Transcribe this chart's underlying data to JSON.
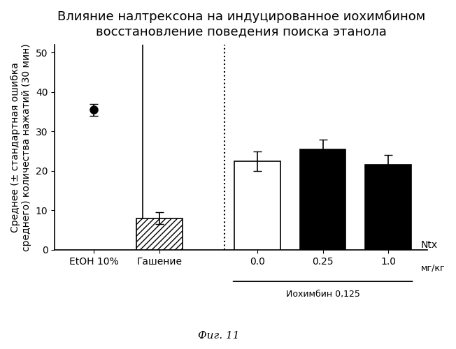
{
  "title_line1": "Влияние налтрексона на индуцированное иохимбином",
  "title_line2": "восстановление поведения поиска этанола",
  "ylabel": "Среднее (± стандартная ошибка\nсреднего) количества нажатий (30 мин)",
  "categories": [
    "EtOH 10%",
    "Гашение",
    "0.0",
    "0.25",
    "1.0"
  ],
  "bar_values": [
    35.5,
    8.0,
    22.5,
    25.5,
    21.5
  ],
  "bar_errors": [
    1.5,
    1.5,
    2.5,
    2.5,
    2.5
  ],
  "dot_value": 35.5,
  "dot_error": 1.5,
  "bar_colors": [
    "white",
    "white",
    "white",
    "black",
    "black"
  ],
  "bar_hatches": [
    null,
    "////",
    null,
    null,
    null
  ],
  "bar_edgecolors": [
    "black",
    "black",
    "black",
    "black",
    "black"
  ],
  "ylim": [
    0,
    52
  ],
  "yticks": [
    0,
    10,
    20,
    30,
    40,
    50
  ],
  "x_positions": [
    0,
    1,
    2.5,
    3.5,
    4.5
  ],
  "solid_vline_x": 0.75,
  "dotted_vline_x": 2.0,
  "ntx_label": "Ntx",
  "mg_label": "мг/кг",
  "yohimbine_label": "Иохимбин 0,125",
  "fig_label": "Фиг. 11",
  "background_color": "#ffffff",
  "title_fontsize": 13,
  "axis_fontsize": 10,
  "tick_fontsize": 10,
  "bar_width": 0.7
}
